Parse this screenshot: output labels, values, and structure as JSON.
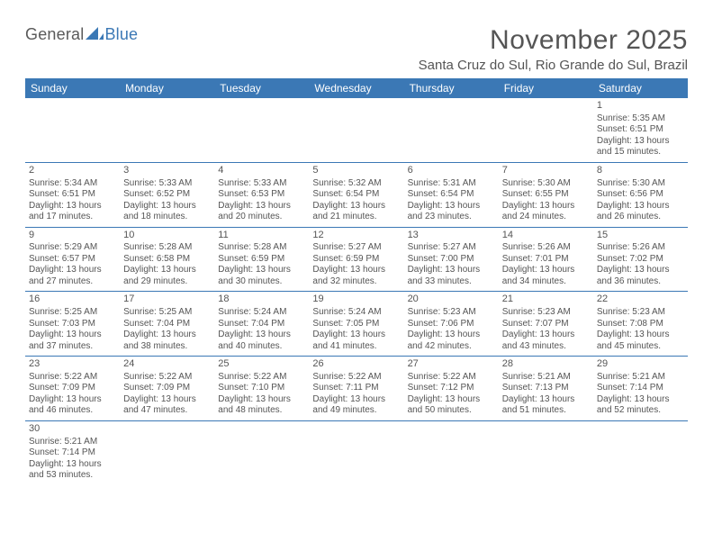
{
  "logo": {
    "text1": "General",
    "text2": "Blue"
  },
  "title": "November 2025",
  "subtitle": "Santa Cruz do Sul, Rio Grande do Sul, Brazil",
  "headers": [
    "Sunday",
    "Monday",
    "Tuesday",
    "Wednesday",
    "Thursday",
    "Friday",
    "Saturday"
  ],
  "colors": {
    "header_bg": "#3b78b5",
    "header_text": "#ffffff",
    "border": "#3b78b5",
    "text": "#555555",
    "background": "#ffffff"
  },
  "typography": {
    "title_fontsize": 30,
    "subtitle_fontsize": 15,
    "header_fontsize": 12,
    "cell_fontsize": 10,
    "font_family": "Arial"
  },
  "weeks": [
    [
      null,
      null,
      null,
      null,
      null,
      null,
      {
        "n": "1",
        "sr": "Sunrise: 5:35 AM",
        "ss": "Sunset: 6:51 PM",
        "d1": "Daylight: 13 hours",
        "d2": "and 15 minutes."
      }
    ],
    [
      {
        "n": "2",
        "sr": "Sunrise: 5:34 AM",
        "ss": "Sunset: 6:51 PM",
        "d1": "Daylight: 13 hours",
        "d2": "and 17 minutes."
      },
      {
        "n": "3",
        "sr": "Sunrise: 5:33 AM",
        "ss": "Sunset: 6:52 PM",
        "d1": "Daylight: 13 hours",
        "d2": "and 18 minutes."
      },
      {
        "n": "4",
        "sr": "Sunrise: 5:33 AM",
        "ss": "Sunset: 6:53 PM",
        "d1": "Daylight: 13 hours",
        "d2": "and 20 minutes."
      },
      {
        "n": "5",
        "sr": "Sunrise: 5:32 AM",
        "ss": "Sunset: 6:54 PM",
        "d1": "Daylight: 13 hours",
        "d2": "and 21 minutes."
      },
      {
        "n": "6",
        "sr": "Sunrise: 5:31 AM",
        "ss": "Sunset: 6:54 PM",
        "d1": "Daylight: 13 hours",
        "d2": "and 23 minutes."
      },
      {
        "n": "7",
        "sr": "Sunrise: 5:30 AM",
        "ss": "Sunset: 6:55 PM",
        "d1": "Daylight: 13 hours",
        "d2": "and 24 minutes."
      },
      {
        "n": "8",
        "sr": "Sunrise: 5:30 AM",
        "ss": "Sunset: 6:56 PM",
        "d1": "Daylight: 13 hours",
        "d2": "and 26 minutes."
      }
    ],
    [
      {
        "n": "9",
        "sr": "Sunrise: 5:29 AM",
        "ss": "Sunset: 6:57 PM",
        "d1": "Daylight: 13 hours",
        "d2": "and 27 minutes."
      },
      {
        "n": "10",
        "sr": "Sunrise: 5:28 AM",
        "ss": "Sunset: 6:58 PM",
        "d1": "Daylight: 13 hours",
        "d2": "and 29 minutes."
      },
      {
        "n": "11",
        "sr": "Sunrise: 5:28 AM",
        "ss": "Sunset: 6:59 PM",
        "d1": "Daylight: 13 hours",
        "d2": "and 30 minutes."
      },
      {
        "n": "12",
        "sr": "Sunrise: 5:27 AM",
        "ss": "Sunset: 6:59 PM",
        "d1": "Daylight: 13 hours",
        "d2": "and 32 minutes."
      },
      {
        "n": "13",
        "sr": "Sunrise: 5:27 AM",
        "ss": "Sunset: 7:00 PM",
        "d1": "Daylight: 13 hours",
        "d2": "and 33 minutes."
      },
      {
        "n": "14",
        "sr": "Sunrise: 5:26 AM",
        "ss": "Sunset: 7:01 PM",
        "d1": "Daylight: 13 hours",
        "d2": "and 34 minutes."
      },
      {
        "n": "15",
        "sr": "Sunrise: 5:26 AM",
        "ss": "Sunset: 7:02 PM",
        "d1": "Daylight: 13 hours",
        "d2": "and 36 minutes."
      }
    ],
    [
      {
        "n": "16",
        "sr": "Sunrise: 5:25 AM",
        "ss": "Sunset: 7:03 PM",
        "d1": "Daylight: 13 hours",
        "d2": "and 37 minutes."
      },
      {
        "n": "17",
        "sr": "Sunrise: 5:25 AM",
        "ss": "Sunset: 7:04 PM",
        "d1": "Daylight: 13 hours",
        "d2": "and 38 minutes."
      },
      {
        "n": "18",
        "sr": "Sunrise: 5:24 AM",
        "ss": "Sunset: 7:04 PM",
        "d1": "Daylight: 13 hours",
        "d2": "and 40 minutes."
      },
      {
        "n": "19",
        "sr": "Sunrise: 5:24 AM",
        "ss": "Sunset: 7:05 PM",
        "d1": "Daylight: 13 hours",
        "d2": "and 41 minutes."
      },
      {
        "n": "20",
        "sr": "Sunrise: 5:23 AM",
        "ss": "Sunset: 7:06 PM",
        "d1": "Daylight: 13 hours",
        "d2": "and 42 minutes."
      },
      {
        "n": "21",
        "sr": "Sunrise: 5:23 AM",
        "ss": "Sunset: 7:07 PM",
        "d1": "Daylight: 13 hours",
        "d2": "and 43 minutes."
      },
      {
        "n": "22",
        "sr": "Sunrise: 5:23 AM",
        "ss": "Sunset: 7:08 PM",
        "d1": "Daylight: 13 hours",
        "d2": "and 45 minutes."
      }
    ],
    [
      {
        "n": "23",
        "sr": "Sunrise: 5:22 AM",
        "ss": "Sunset: 7:09 PM",
        "d1": "Daylight: 13 hours",
        "d2": "and 46 minutes."
      },
      {
        "n": "24",
        "sr": "Sunrise: 5:22 AM",
        "ss": "Sunset: 7:09 PM",
        "d1": "Daylight: 13 hours",
        "d2": "and 47 minutes."
      },
      {
        "n": "25",
        "sr": "Sunrise: 5:22 AM",
        "ss": "Sunset: 7:10 PM",
        "d1": "Daylight: 13 hours",
        "d2": "and 48 minutes."
      },
      {
        "n": "26",
        "sr": "Sunrise: 5:22 AM",
        "ss": "Sunset: 7:11 PM",
        "d1": "Daylight: 13 hours",
        "d2": "and 49 minutes."
      },
      {
        "n": "27",
        "sr": "Sunrise: 5:22 AM",
        "ss": "Sunset: 7:12 PM",
        "d1": "Daylight: 13 hours",
        "d2": "and 50 minutes."
      },
      {
        "n": "28",
        "sr": "Sunrise: 5:21 AM",
        "ss": "Sunset: 7:13 PM",
        "d1": "Daylight: 13 hours",
        "d2": "and 51 minutes."
      },
      {
        "n": "29",
        "sr": "Sunrise: 5:21 AM",
        "ss": "Sunset: 7:14 PM",
        "d1": "Daylight: 13 hours",
        "d2": "and 52 minutes."
      }
    ],
    [
      {
        "n": "30",
        "sr": "Sunrise: 5:21 AM",
        "ss": "Sunset: 7:14 PM",
        "d1": "Daylight: 13 hours",
        "d2": "and 53 minutes."
      },
      null,
      null,
      null,
      null,
      null,
      null
    ]
  ]
}
